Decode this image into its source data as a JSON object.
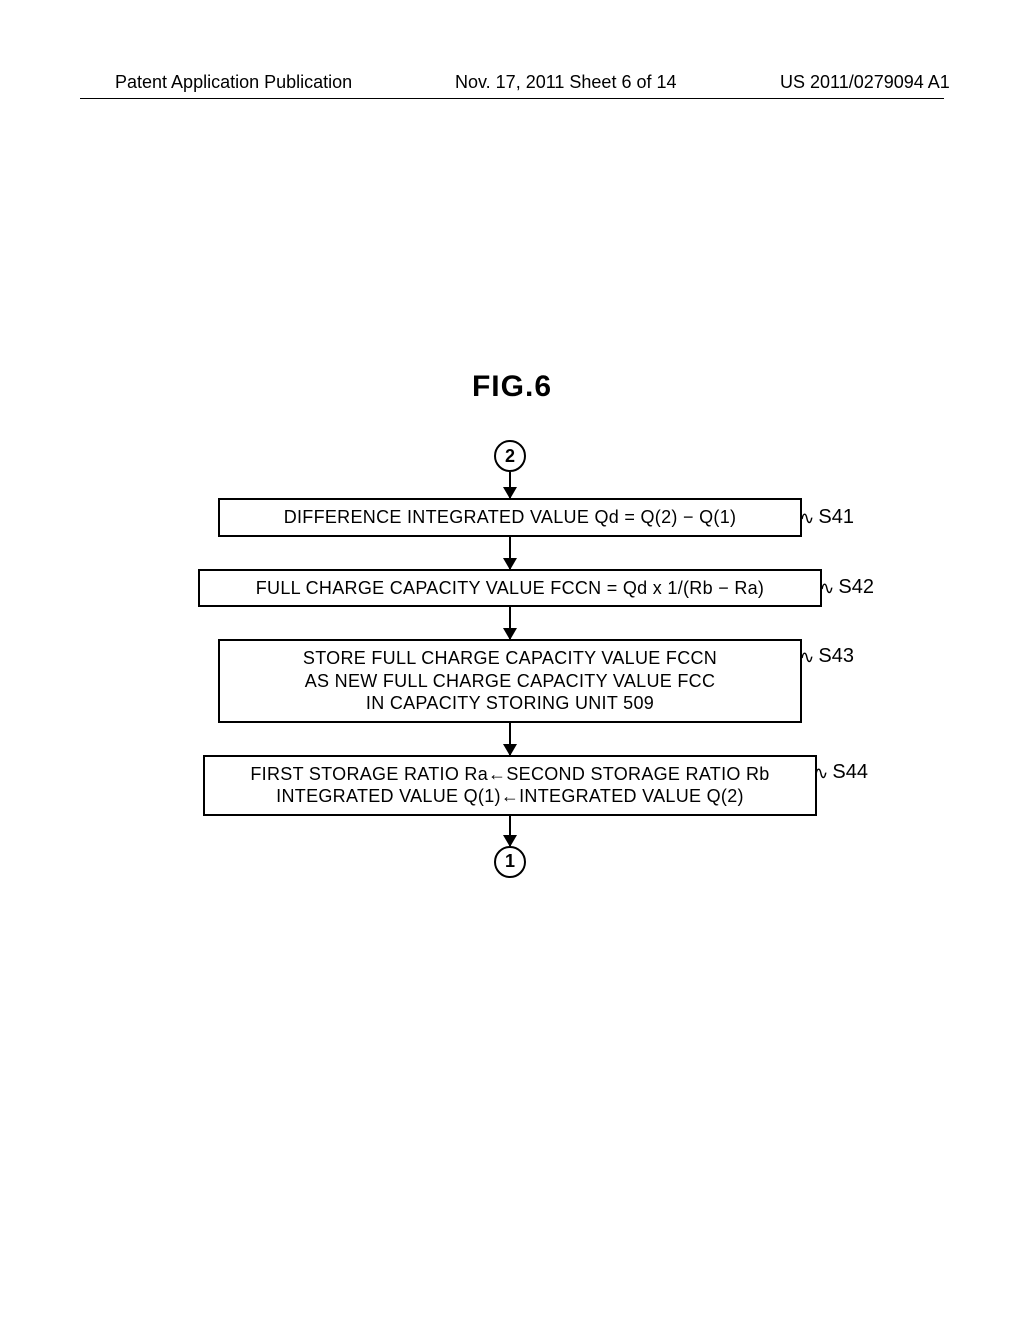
{
  "header": {
    "left": "Patent Application Publication",
    "center": "Nov. 17, 2011  Sheet 6 of 14",
    "right": "US 2011/0279094 A1"
  },
  "figure": {
    "title": "FIG.6",
    "connector_top": "2",
    "connector_bottom": "1",
    "steps": [
      {
        "label": "S41",
        "text": "DIFFERENCE INTEGRATED VALUE Qd = Q(2) − Q(1)"
      },
      {
        "label": "S42",
        "text": "FULL CHARGE CAPACITY VALUE FCCN = Qd x 1/(Rb − Ra)"
      },
      {
        "label": "S43",
        "text": "STORE FULL CHARGE CAPACITY VALUE FCCN\nAS NEW FULL CHARGE CAPACITY VALUE FCC\nIN CAPACITY STORING UNIT 509"
      },
      {
        "label": "S44",
        "text": "FIRST STORAGE RATIO Ra←SECOND STORAGE RATIO Rb\nINTEGRATED VALUE Q(1)←INTEGRATED VALUE Q(2)"
      }
    ]
  },
  "layout": {
    "arrow_height_short": 26,
    "arrow_height_long": 32,
    "box_colors": {
      "border": "#000000",
      "bg": "#ffffff"
    },
    "text_color": "#000000",
    "page_bg": "#ffffff"
  }
}
